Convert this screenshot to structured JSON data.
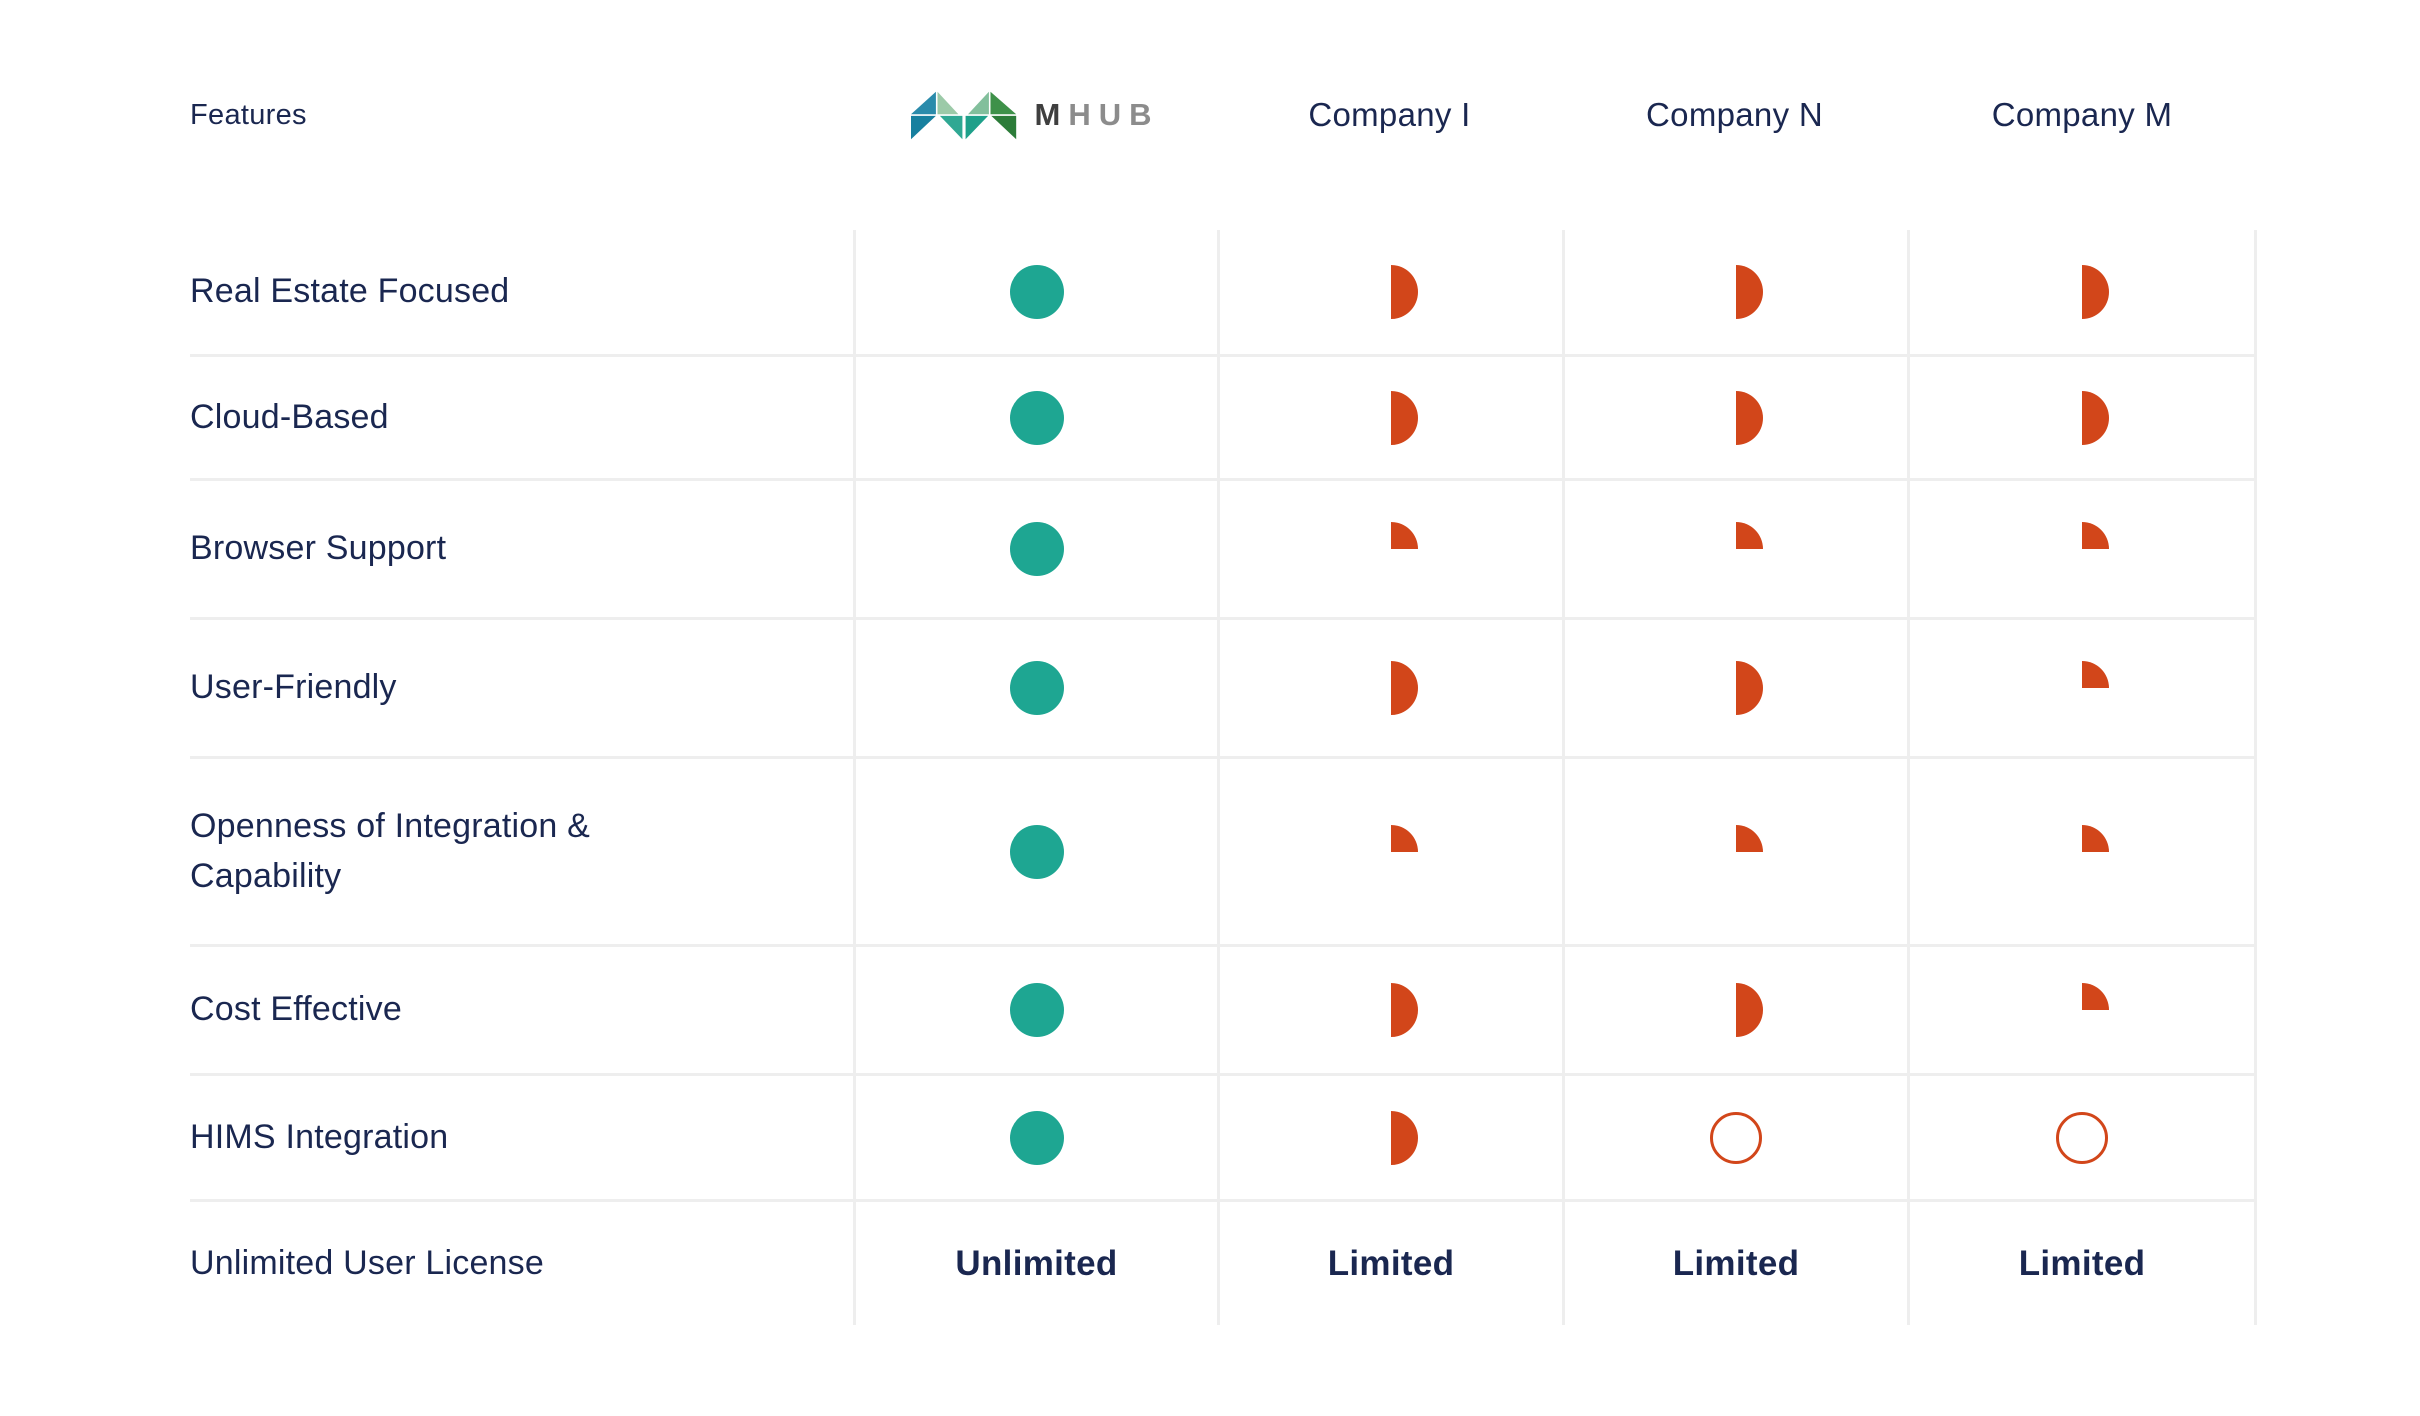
{
  "colors": {
    "navy": "#1a2750",
    "teal": "#1ea692",
    "orange": "#d2461a",
    "grid": "#eeeeee",
    "logo_m_text": "#3f3f3f",
    "logo_hub_text": "#8c8c8c"
  },
  "header": {
    "logo": {
      "name": "mhub-logo",
      "text_m": "M",
      "text_hub": "HUB",
      "triangle_colors": [
        "#2a8bab",
        "#17809f",
        "#9ccaa8",
        "#82bf9c",
        "#2fa893",
        "#1ea08a",
        "#3e9149",
        "#2c7c39"
      ]
    }
  },
  "chart_data": {
    "type": "table",
    "columns": [
      "Features",
      "MHUB",
      "Company I",
      "Company N",
      "Company M"
    ],
    "rows": [
      {
        "feature": "Real Estate Focused",
        "values": [
          "full",
          "half",
          "half",
          "half"
        ]
      },
      {
        "feature": "Cloud-Based",
        "values": [
          "full",
          "half",
          "half",
          "half"
        ]
      },
      {
        "feature": "Browser Support",
        "values": [
          "full",
          "quarter",
          "quarter",
          "quarter"
        ]
      },
      {
        "feature": "User-Friendly",
        "values": [
          "full",
          "half",
          "half",
          "quarter"
        ]
      },
      {
        "feature": "Openness of Integration &\nCapability",
        "values": [
          "full",
          "quarter",
          "quarter",
          "quarter"
        ]
      },
      {
        "feature": "Cost Effective",
        "values": [
          "full",
          "half",
          "half",
          "quarter"
        ]
      },
      {
        "feature": "HIMS Integration",
        "values": [
          "full",
          "half",
          "empty",
          "empty"
        ]
      },
      {
        "feature": "Unlimited User License",
        "values": [
          "Unlimited",
          "Limited",
          "Limited",
          "Limited"
        ]
      }
    ]
  }
}
